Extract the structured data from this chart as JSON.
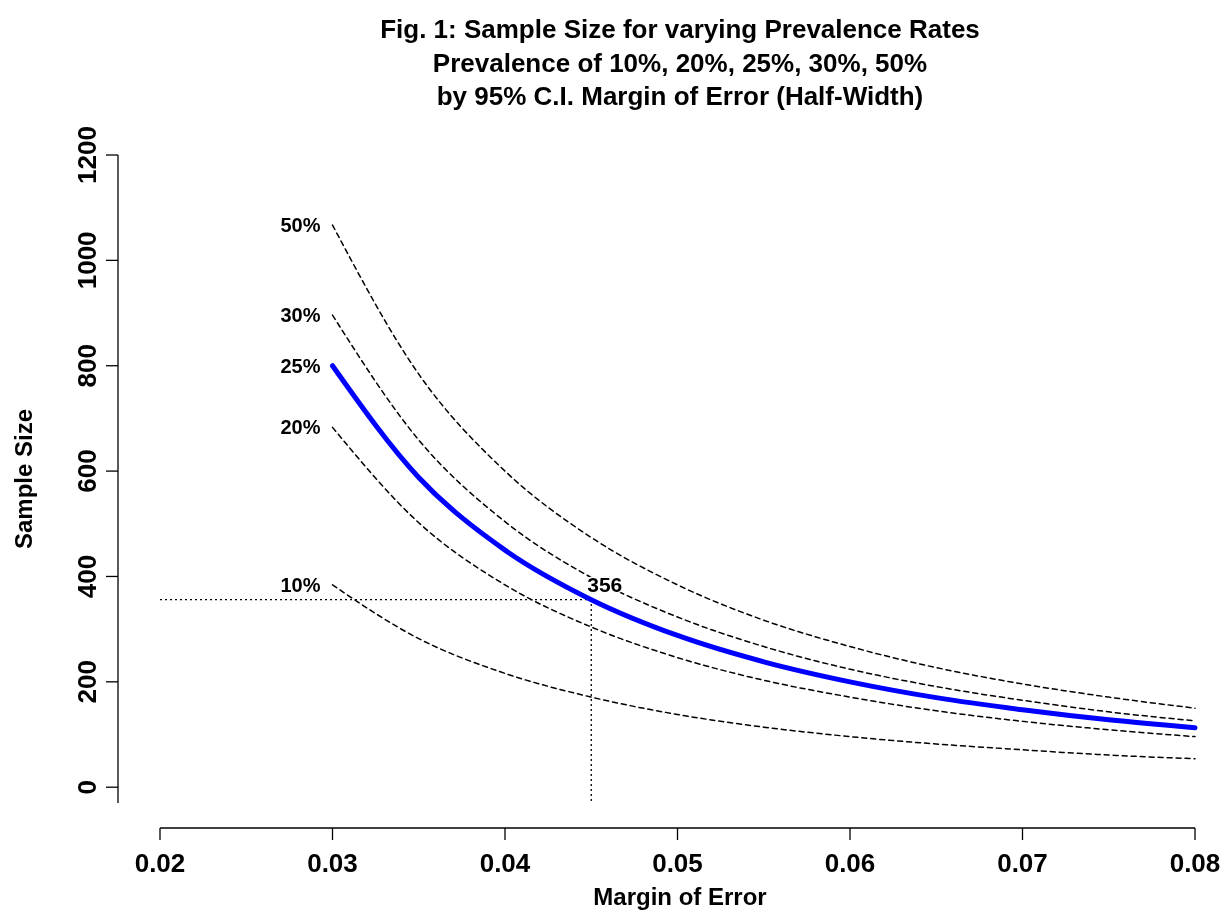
{
  "chart_data": {
    "type": "line",
    "title": "Fig. 1: Sample Size for varying Prevalence Rates",
    "subtitle": "Prevalence of 10%, 20%, 25%, 30%, 50%\nby 95% C.I. Margin of Error (Half-Width)",
    "xlabel": "Margin of Error",
    "ylabel": "Sample Size",
    "x": [
      0.03,
      0.035,
      0.04,
      0.045,
      0.05,
      0.055,
      0.06,
      0.065,
      0.07,
      0.075,
      0.08
    ],
    "series": [
      {
        "name": "50%",
        "color": "#000000",
        "line_style": "dashed",
        "values": [
          1067,
          784,
          600,
          474,
          384,
          317,
          267,
          227,
          196,
          171,
          150
        ]
      },
      {
        "name": "30%",
        "color": "#000000",
        "line_style": "dashed",
        "values": [
          896,
          659,
          504,
          398,
          323,
          267,
          224,
          191,
          165,
          143,
          126
        ]
      },
      {
        "name": "25%",
        "color": "#0000ff",
        "line_style": "solid",
        "values": [
          800,
          588,
          450,
          356,
          288,
          238,
          200,
          170,
          147,
          128,
          113
        ]
      },
      {
        "name": "20%",
        "color": "#000000",
        "line_style": "dashed",
        "values": [
          683,
          502,
          384,
          304,
          246,
          203,
          171,
          145,
          125,
          109,
          96
        ]
      },
      {
        "name": "10%",
        "color": "#000000",
        "line_style": "dashed",
        "values": [
          384,
          282,
          216,
          171,
          138,
          114,
          96,
          82,
          71,
          61,
          54
        ]
      }
    ],
    "xlim": [
      0.02,
      0.08
    ],
    "xticks": [
      0.02,
      0.03,
      0.04,
      0.05,
      0.06,
      0.07,
      0.08
    ],
    "ylim": [
      -30,
      1200
    ],
    "yticks": [
      0,
      200,
      400,
      600,
      800,
      1000,
      1200
    ],
    "ref_lines": [
      {
        "axis": "y",
        "value": 356,
        "line_style": "dotted",
        "color": "#000000"
      },
      {
        "axis": "x",
        "value": 0.045,
        "line_style": "dotted",
        "color": "#000000"
      }
    ],
    "annotations": [
      {
        "text": "356",
        "x": 0.045,
        "y": 356
      }
    ]
  }
}
